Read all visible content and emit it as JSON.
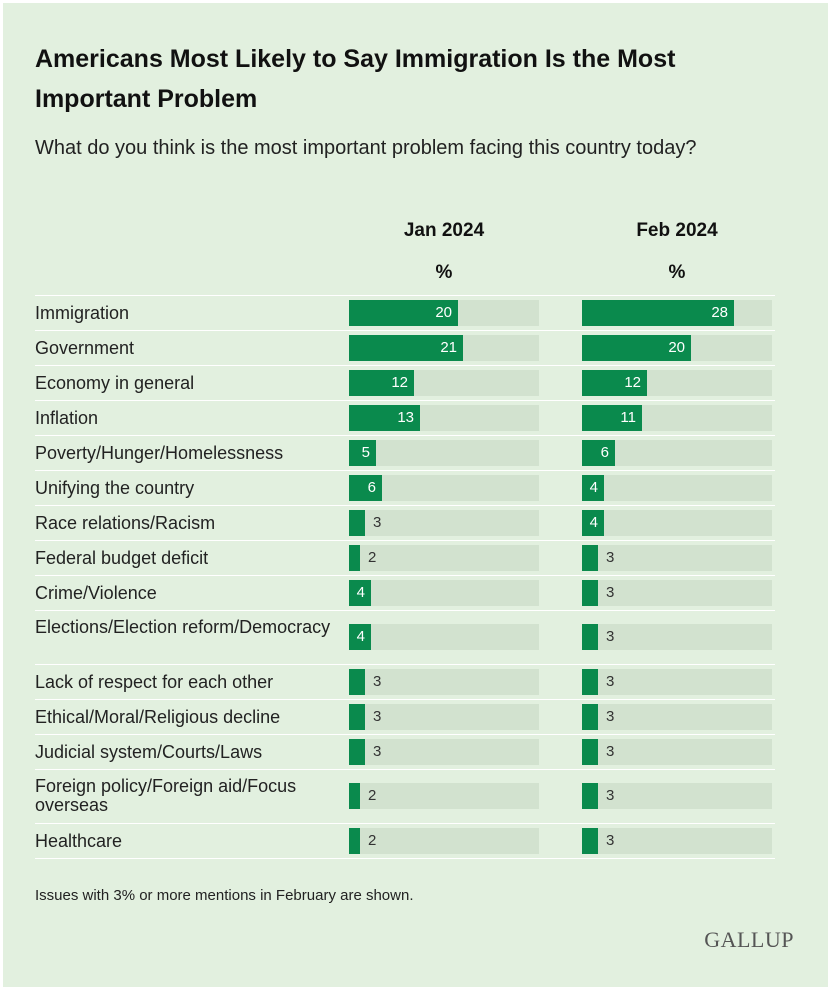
{
  "title": "Americans Most Likely to Say Immigration Is the Most Important Problem",
  "subtitle": "What do you think is the most important problem facing this country today?",
  "note": "Issues with 3% or more mentions in February are shown.",
  "logo": "GALLUP",
  "colors": {
    "background": "#e2f0df",
    "bar": "#0a8a4d",
    "track": "#d2e2cf"
  },
  "chart_data": {
    "type": "bar",
    "orientation": "horizontal",
    "unit_label": "%",
    "xlim": [
      0,
      35
    ],
    "categories": [
      "Immigration",
      "Government",
      "Economy in general",
      "Inflation",
      "Poverty/Hunger/Homelessness",
      "Unifying the country",
      "Race relations/Racism",
      "Federal budget deficit",
      "Crime/Violence",
      "Elections/Election reform/Democracy",
      "Lack of respect for each other",
      "Ethical/Moral/Religious decline",
      "Judicial system/Courts/Laws",
      "Foreign policy/Foreign aid/Focus overseas",
      "Healthcare"
    ],
    "series": [
      {
        "name": "Jan 2024",
        "values": [
          20,
          21,
          12,
          13,
          5,
          6,
          3,
          2,
          4,
          4,
          3,
          3,
          3,
          2,
          2
        ]
      },
      {
        "name": "Feb 2024",
        "values": [
          28,
          20,
          12,
          11,
          6,
          4,
          4,
          3,
          3,
          3,
          3,
          3,
          3,
          3,
          3
        ]
      }
    ]
  }
}
